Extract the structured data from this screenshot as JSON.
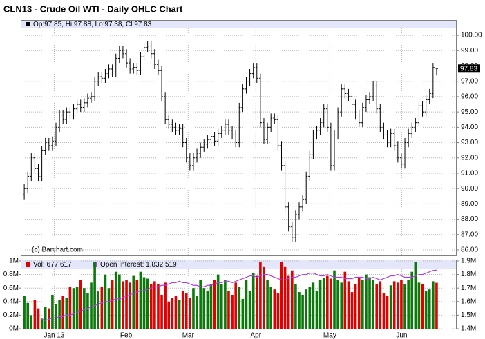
{
  "chart_data": [
    {
      "type": "ohlc",
      "title": "CLN13 - Crude Oil WTI - Daily OHLC Chart",
      "info": "Op:97.85, Hi:97.88, Lo:97.38, Cl:97.83",
      "credit": "(c) Barchart.com",
      "color": "#000000",
      "grid": true,
      "xlim": [
        -1,
        122.5
      ],
      "xticks": [
        {
          "value": 8.5,
          "label": "Jan 13"
        },
        {
          "value": 28.9,
          "label": "Feb"
        },
        {
          "value": 46.5,
          "label": "Mar"
        },
        {
          "value": 65.7,
          "label": "Apr"
        },
        {
          "value": 86.7,
          "label": "May"
        },
        {
          "value": 107.1,
          "label": "Jun"
        }
      ],
      "ylim": [
        85.64,
        100.5
      ],
      "yticks": [
        {
          "value": 86,
          "label": "86.00"
        },
        {
          "value": 87,
          "label": "87.00"
        },
        {
          "value": 88,
          "label": "88.00"
        },
        {
          "value": 89,
          "label": "89.00"
        },
        {
          "value": 90,
          "label": "90.00"
        },
        {
          "value": 91,
          "label": "91.00"
        },
        {
          "value": 92,
          "label": "92.00"
        },
        {
          "value": 93,
          "label": "93.00"
        },
        {
          "value": 94,
          "label": "94.00"
        },
        {
          "value": 95,
          "label": "95.00"
        },
        {
          "value": 96,
          "label": "96.00"
        },
        {
          "value": 97,
          "label": "97.00"
        },
        {
          "value": 98,
          "label": "98.00"
        },
        {
          "value": 99,
          "label": "99.00"
        },
        {
          "value": 100,
          "label": "100.00"
        }
      ],
      "open": [
        89.6,
        90.0,
        90.8,
        92.0,
        91.3,
        90.8,
        92.5,
        93.0,
        92.8,
        93.1,
        94.0,
        94.8,
        94.5,
        95.0,
        94.8,
        95.2,
        95.5,
        95.3,
        95.6,
        95.9,
        96.0,
        97.0,
        97.3,
        97.2,
        97.5,
        97.8,
        97.6,
        98.5,
        99.0,
        98.8,
        98.2,
        97.8,
        97.9,
        97.7,
        98.6,
        99.2,
        99.3,
        98.8,
        98.1,
        97.7,
        96.0,
        94.5,
        94.2,
        94.0,
        93.8,
        93.9,
        93.0,
        92.0,
        91.5,
        92.0,
        92.3,
        92.7,
        92.9,
        93.2,
        93.4,
        93.1,
        93.6,
        93.8,
        94.2,
        93.8,
        93.5,
        93.0,
        95.3,
        96.5,
        97.0,
        97.5,
        97.9,
        97.2,
        94.3,
        93.2,
        94.0,
        94.6,
        94.5,
        92.8,
        91.5,
        88.8,
        87.5,
        86.8,
        88.3,
        88.8,
        89.3,
        90.8,
        92.2,
        93.5,
        93.8,
        94.3,
        95.2,
        94.0,
        91.5,
        93.5,
        95.0,
        96.5,
        96.2,
        96.0,
        95.5,
        94.8,
        94.3,
        95.3,
        95.8,
        96.0,
        96.7,
        95.2,
        94.0,
        93.5,
        93.0,
        93.6,
        92.8,
        92.0,
        91.6,
        93.0,
        93.6,
        94.0,
        94.3,
        95.4,
        95.0,
        95.8,
        96.2,
        97.85
      ],
      "high": [
        90.3,
        91.1,
        92.3,
        92.3,
        91.6,
        92.8,
        93.3,
        93.3,
        93.4,
        94.3,
        95.1,
        95.1,
        95.3,
        95.3,
        95.5,
        95.8,
        95.8,
        95.9,
        96.2,
        96.3,
        97.3,
        97.6,
        97.6,
        97.8,
        98.1,
        98.1,
        98.8,
        99.3,
        99.3,
        99.1,
        98.5,
        98.2,
        98.2,
        98.9,
        99.5,
        99.6,
        99.6,
        99.1,
        98.4,
        98.0,
        96.3,
        94.8,
        94.5,
        94.3,
        94.2,
        94.2,
        93.3,
        92.3,
        92.3,
        92.6,
        93.0,
        93.2,
        93.5,
        93.7,
        93.7,
        93.9,
        94.1,
        94.5,
        94.5,
        94.1,
        93.8,
        95.6,
        96.8,
        97.3,
        97.8,
        98.2,
        98.2,
        97.5,
        94.6,
        94.3,
        94.9,
        94.9,
        94.8,
        93.1,
        91.8,
        89.1,
        87.8,
        88.6,
        89.1,
        89.6,
        91.1,
        92.5,
        93.8,
        94.1,
        94.6,
        95.5,
        95.5,
        94.3,
        93.8,
        95.3,
        96.8,
        96.8,
        96.5,
        96.3,
        95.8,
        95.1,
        95.6,
        96.1,
        96.3,
        97.0,
        97.0,
        95.5,
        94.3,
        93.8,
        93.9,
        93.9,
        93.1,
        92.3,
        93.3,
        93.9,
        94.3,
        94.6,
        95.7,
        95.7,
        96.1,
        96.5,
        98.2,
        97.88
      ],
      "low": [
        89.3,
        89.7,
        90.5,
        91.0,
        90.5,
        90.5,
        92.2,
        92.5,
        92.5,
        92.8,
        93.7,
        94.2,
        94.2,
        94.5,
        94.5,
        94.9,
        95.0,
        95.0,
        95.3,
        95.6,
        95.7,
        96.7,
        96.9,
        96.9,
        97.2,
        97.3,
        97.3,
        98.2,
        98.5,
        97.9,
        97.5,
        97.5,
        97.4,
        97.4,
        98.3,
        98.9,
        98.5,
        97.8,
        97.4,
        95.7,
        94.2,
        93.9,
        93.7,
        93.5,
        93.5,
        92.7,
        91.7,
        91.2,
        91.2,
        91.7,
        92.0,
        92.4,
        92.6,
        92.9,
        92.8,
        92.8,
        93.3,
        93.5,
        93.5,
        93.2,
        92.7,
        92.7,
        95.0,
        96.2,
        96.7,
        97.2,
        96.9,
        94.0,
        92.9,
        92.9,
        93.7,
        94.2,
        92.5,
        91.2,
        88.5,
        87.2,
        86.5,
        86.5,
        88.0,
        88.5,
        89.0,
        90.5,
        91.9,
        93.2,
        93.5,
        94.0,
        93.7,
        91.2,
        91.2,
        93.2,
        94.7,
        95.9,
        95.7,
        95.2,
        94.5,
        94.0,
        94.0,
        95.0,
        95.5,
        95.7,
        94.9,
        93.7,
        93.2,
        92.7,
        92.7,
        92.5,
        91.7,
        91.3,
        91.3,
        92.7,
        93.3,
        93.7,
        94.0,
        94.7,
        94.7,
        95.5,
        95.9,
        97.38
      ],
      "close": [
        90.0,
        90.8,
        92.0,
        91.3,
        90.8,
        92.5,
        93.0,
        92.8,
        93.1,
        94.0,
        94.8,
        94.5,
        95.0,
        94.8,
        95.2,
        95.5,
        95.3,
        95.6,
        95.9,
        96.0,
        97.0,
        97.3,
        97.2,
        97.5,
        97.8,
        97.6,
        98.5,
        99.0,
        98.8,
        98.2,
        97.8,
        97.9,
        97.7,
        98.6,
        99.2,
        99.3,
        98.8,
        98.1,
        97.7,
        96.0,
        94.5,
        94.2,
        94.0,
        93.8,
        93.9,
        93.0,
        92.0,
        91.5,
        92.0,
        92.3,
        92.7,
        92.9,
        93.2,
        93.4,
        93.1,
        93.6,
        93.8,
        94.2,
        93.8,
        93.5,
        93.0,
        95.3,
        96.5,
        97.0,
        97.5,
        97.9,
        97.2,
        94.3,
        93.2,
        94.0,
        94.6,
        94.5,
        92.8,
        91.5,
        88.8,
        87.5,
        86.8,
        88.3,
        88.8,
        89.3,
        90.8,
        92.2,
        93.5,
        93.8,
        94.3,
        95.2,
        94.0,
        91.5,
        93.5,
        95.0,
        96.5,
        96.2,
        96.0,
        95.5,
        94.8,
        94.3,
        95.3,
        95.8,
        96.0,
        96.7,
        95.2,
        94.0,
        93.5,
        93.0,
        93.6,
        92.8,
        92.0,
        91.6,
        93.0,
        93.6,
        94.0,
        94.3,
        95.4,
        95.0,
        95.8,
        96.2,
        97.9,
        97.83
      ]
    },
    {
      "type": "volume",
      "grid": true,
      "xlim": [
        -1,
        122.5
      ],
      "ylim": [
        0,
        1
      ],
      "yticks": [
        {
          "value": 0,
          "label": "0M"
        },
        {
          "value": 0.2,
          "label": "0.2M"
        },
        {
          "value": 0.4,
          "label": "0.4M"
        },
        {
          "value": 0.6,
          "label": "0.6M"
        },
        {
          "value": 0.8,
          "label": "0.8M"
        },
        {
          "value": 1,
          "label": "1M"
        }
      ],
      "y2lim": [
        1.4,
        1.9
      ],
      "y2ticks": [
        {
          "value": 1.4,
          "label": "1.4M"
        },
        {
          "value": 1.5,
          "label": "1.5M"
        },
        {
          "value": 1.6,
          "label": "1.6M"
        },
        {
          "value": 1.7,
          "label": "1.7M"
        },
        {
          "value": 1.8,
          "label": "1.8M"
        },
        {
          "value": 1.9,
          "label": "1.9M"
        }
      ],
      "series": [
        {
          "name": "Vol: 677,617",
          "color": "#e00000",
          "up_color": "#0a7a0a",
          "down_color": "#e00000",
          "values": [
            0.48,
            0.38,
            0.2,
            0.42,
            0.3,
            0.15,
            0.32,
            0.3,
            0.5,
            0.36,
            0.42,
            0.48,
            0.46,
            0.62,
            0.6,
            0.62,
            0.72,
            0.6,
            0.52,
            0.68,
            0.98,
            0.55,
            0.62,
            0.8,
            0.6,
            0.72,
            0.84,
            0.8,
            0.7,
            0.72,
            0.68,
            0.78,
            0.72,
            0.84,
            0.76,
            0.74,
            0.66,
            0.7,
            0.66,
            0.5,
            0.68,
            0.4,
            0.45,
            0.48,
            0.42,
            0.56,
            0.52,
            0.45,
            0.6,
            0.48,
            0.72,
            0.6,
            0.56,
            0.66,
            0.72,
            0.8,
            0.66,
            0.72,
            0.56,
            0.5,
            0.68,
            0.62,
            0.44,
            0.72,
            0.56,
            0.82,
            0.78,
            0.98,
            0.92,
            0.72,
            0.62,
            0.58,
            0.52,
            0.98,
            0.92,
            0.78,
            0.86,
            0.66,
            0.54,
            0.5,
            0.58,
            0.62,
            0.68,
            0.56,
            0.72,
            0.75,
            0.78,
            0.74,
            0.86,
            0.72,
            0.68,
            0.84,
            0.7,
            0.54,
            0.66,
            0.76,
            0.72,
            0.8,
            0.76,
            0.72,
            0.66,
            0.7,
            0.52,
            0.48,
            0.64,
            0.7,
            0.68,
            0.72,
            0.66,
            0.72,
            0.84,
            0.98,
            0.68,
            0.66,
            0.56,
            0.58,
            0.7,
            0.677617
          ]
        },
        {
          "name": "Open Interest: 1,832,519",
          "color": "#b040e0",
          "axis": "y2",
          "values": [
            null,
            null,
            null,
            null,
            null,
            1.47,
            1.46,
            1.47,
            1.48,
            1.48,
            1.49,
            1.49,
            1.5,
            1.5,
            1.51,
            1.52,
            1.53,
            1.54,
            1.55,
            1.56,
            1.57,
            1.58,
            1.59,
            1.6,
            1.6,
            1.61,
            1.62,
            1.62,
            1.63,
            1.64,
            1.65,
            1.66,
            1.67,
            1.68,
            1.68,
            1.69,
            1.7,
            1.71,
            1.71,
            1.72,
            1.72,
            1.73,
            1.74,
            1.74,
            1.75,
            1.74,
            1.74,
            1.73,
            1.72,
            1.72,
            1.71,
            1.71,
            1.72,
            1.72,
            1.73,
            1.74,
            1.74,
            1.75,
            1.75,
            1.74,
            1.75,
            1.76,
            1.77,
            1.78,
            1.79,
            1.79,
            1.78,
            1.79,
            1.8,
            1.8,
            1.79,
            1.78,
            1.77,
            1.76,
            1.76,
            1.77,
            1.78,
            1.78,
            1.79,
            1.8,
            1.8,
            1.81,
            1.81,
            1.8,
            1.79,
            1.79,
            1.8,
            1.79,
            1.78,
            1.78,
            1.78,
            1.77,
            1.77,
            1.77,
            1.78,
            1.78,
            1.78,
            1.77,
            1.77,
            1.78,
            1.77,
            1.76,
            1.77,
            1.78,
            1.79,
            1.79,
            1.8,
            1.79,
            1.78,
            1.78,
            1.78,
            1.79,
            1.8,
            1.8,
            1.81,
            1.82,
            1.83,
            1.832519
          ]
        }
      ]
    }
  ]
}
